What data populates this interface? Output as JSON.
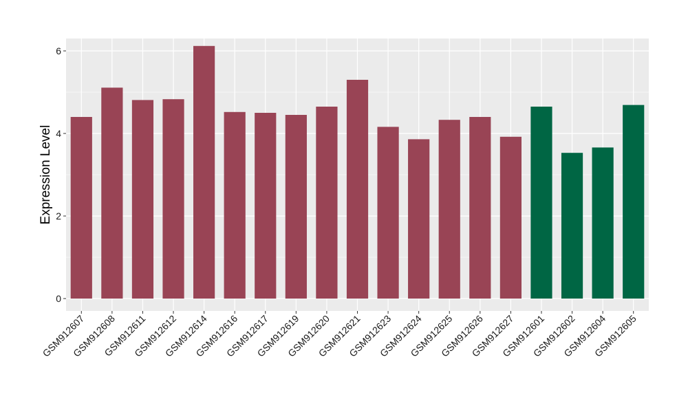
{
  "chart_data": {
    "type": "bar",
    "title": "",
    "xlabel": "",
    "ylabel": "Expression Level",
    "ylim": [
      -0.3,
      6.3
    ],
    "yticks": [
      0,
      2,
      4,
      6
    ],
    "grid": true,
    "legend": "none",
    "categories": [
      "GSM912607",
      "GSM912608",
      "GSM912611",
      "GSM912612",
      "GSM912614",
      "GSM912616",
      "GSM912617",
      "GSM912619",
      "GSM912620",
      "GSM912621",
      "GSM912623",
      "GSM912624",
      "GSM912625",
      "GSM912626",
      "GSM912627",
      "GSM912601",
      "GSM912602",
      "GSM912604",
      "GSM912605"
    ],
    "values": [
      4.4,
      5.11,
      4.81,
      4.83,
      6.12,
      4.52,
      4.5,
      4.45,
      4.65,
      5.3,
      4.16,
      3.86,
      4.33,
      4.4,
      3.92,
      4.65,
      3.53,
      3.66,
      4.69
    ],
    "bar_colors": [
      "#994455",
      "#994455",
      "#994455",
      "#994455",
      "#994455",
      "#994455",
      "#994455",
      "#994455",
      "#994455",
      "#994455",
      "#994455",
      "#994455",
      "#994455",
      "#994455",
      "#994455",
      "#006644",
      "#006644",
      "#006644",
      "#006644"
    ],
    "colors": {
      "panel_background": "#ebebeb",
      "grid": "#ffffff",
      "group_a": "#994455",
      "group_b": "#006644"
    }
  }
}
